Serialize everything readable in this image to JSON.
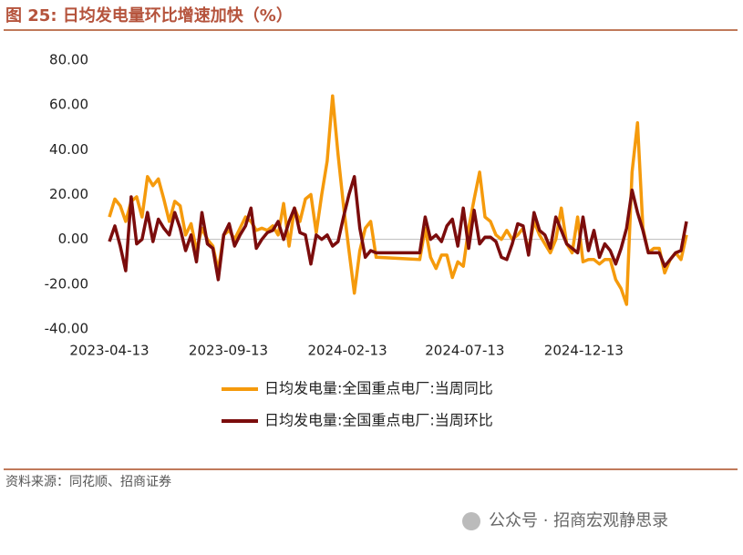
{
  "header": {
    "title": "图 25:  日均发电量环比增速加快（%）"
  },
  "chart_data": {
    "type": "line",
    "x": [
      "2023-04-13",
      "2023-04-20",
      "2023-04-27",
      "2023-05-04",
      "2023-05-11",
      "2023-05-18",
      "2023-05-25",
      "2023-06-01",
      "2023-06-08",
      "2023-06-15",
      "2023-06-22",
      "2023-06-29",
      "2023-07-06",
      "2023-07-13",
      "2023-07-20",
      "2023-07-27",
      "2023-08-03",
      "2023-08-10",
      "2023-08-17",
      "2023-08-24",
      "2023-08-31",
      "2023-09-07",
      "2023-09-14",
      "2023-09-21",
      "2023-09-28",
      "2023-10-05",
      "2023-10-12",
      "2023-10-19",
      "2023-10-26",
      "2023-11-02",
      "2023-11-09",
      "2023-11-16",
      "2023-11-23",
      "2023-11-30",
      "2023-12-07",
      "2023-12-14",
      "2023-12-21",
      "2023-12-28",
      "2024-01-04",
      "2024-01-11",
      "2024-01-18",
      "2024-01-25",
      "2024-02-01",
      "2024-02-08",
      "2024-02-15",
      "2024-02-22",
      "2024-02-29",
      "2024-03-07",
      "2024-03-14",
      "2024-03-21",
      "2024-05-16",
      "2024-05-23",
      "2024-05-30",
      "2024-06-06",
      "2024-06-13",
      "2024-06-20",
      "2024-06-27",
      "2024-07-04",
      "2024-07-11",
      "2024-07-18",
      "2024-07-25",
      "2024-08-01",
      "2024-08-08",
      "2024-08-15",
      "2024-08-22",
      "2024-08-29",
      "2024-09-05",
      "2024-09-12",
      "2024-09-19",
      "2024-09-26",
      "2024-10-03",
      "2024-10-10",
      "2024-10-17",
      "2024-10-24",
      "2024-10-31",
      "2024-11-07",
      "2024-11-14",
      "2024-11-21",
      "2024-11-28",
      "2024-12-05",
      "2024-12-12",
      "2024-12-19",
      "2024-12-26",
      "2025-01-02",
      "2025-01-09",
      "2025-01-16",
      "2025-01-23",
      "2025-01-30",
      "2025-02-06",
      "2025-02-13",
      "2025-02-20",
      "2025-02-27",
      "2025-03-06",
      "2025-03-13",
      "2025-03-20",
      "2025-03-27",
      "2025-04-03",
      "2025-04-10",
      "2025-04-17",
      "2025-04-24"
    ],
    "series": [
      {
        "name": "日均发电量:全国重点电厂:当周同比",
        "color": "#f59a0c",
        "values": [
          10,
          18,
          15,
          8,
          17,
          19,
          10,
          28,
          24,
          27,
          18,
          8,
          17,
          15,
          2,
          7,
          -5,
          5,
          0,
          -3,
          -14,
          2,
          4,
          0,
          5,
          10,
          8,
          4,
          5,
          4,
          6,
          2,
          16,
          -3,
          14,
          8,
          18,
          20,
          3,
          20,
          35,
          64,
          38,
          15,
          -5,
          -24,
          -5,
          5,
          8,
          -8,
          -9,
          5,
          -8,
          -13,
          -7,
          -7,
          -17,
          -10,
          -12,
          5,
          18,
          30,
          10,
          8,
          2,
          0,
          4,
          0,
          2,
          5,
          -5,
          8,
          2,
          -2,
          -6,
          0,
          14,
          -2,
          -6,
          10,
          -10,
          -9,
          -9,
          -11,
          -9,
          -9,
          -18,
          -22,
          -29,
          30,
          52,
          5,
          -6,
          -4,
          -4,
          -15,
          -9,
          -6,
          -9,
          2
        ]
      },
      {
        "name": "日均发电量:全国重点电厂:当周环比",
        "color": "#7b0c0c",
        "values": [
          -1,
          6,
          -3,
          -14,
          19,
          -2,
          0,
          12,
          -1,
          9,
          5,
          2,
          12,
          5,
          -5,
          2,
          -10,
          12,
          -2,
          -4,
          -18,
          2,
          7,
          -3,
          2,
          6,
          14,
          -4,
          0,
          3,
          4,
          8,
          0,
          8,
          14,
          3,
          2,
          -11,
          2,
          0,
          2,
          -3,
          -1,
          10,
          20,
          28,
          5,
          -8,
          -5,
          -6,
          -6,
          10,
          0,
          2,
          -1,
          6,
          9,
          -3,
          14,
          -4,
          13,
          -2,
          1,
          1,
          -1,
          -8,
          -9,
          -2,
          7,
          6,
          -7,
          12,
          4,
          2,
          -4,
          10,
          4,
          -2,
          -4,
          -6,
          10,
          -5,
          4,
          -8,
          -2,
          -5,
          -11,
          -4,
          5,
          22,
          12,
          4,
          -6,
          -6,
          -6,
          -12,
          -9,
          -6,
          -5,
          8
        ]
      }
    ],
    "xlim": [
      "2023-04-13",
      "2025-04-24"
    ],
    "xticks": [
      "2023-04-13",
      "2023-09-13",
      "2024-02-13",
      "2024-07-13",
      "2024-12-13"
    ],
    "ylim": [
      -40,
      80
    ],
    "yticks": [
      {
        "value": -40,
        "label": "-40.00"
      },
      {
        "value": -20,
        "label": "-20.00"
      },
      {
        "value": 0,
        "label": "0.00"
      },
      {
        "value": 20,
        "label": "20.00"
      },
      {
        "value": 40,
        "label": "40.00"
      },
      {
        "value": 60,
        "label": "60.00"
      },
      {
        "value": 80,
        "label": "80.00"
      }
    ]
  },
  "footer": {
    "source": "资料来源：同花顺、招商证券",
    "watermark": "公众号 · 招商宏观静思录"
  }
}
